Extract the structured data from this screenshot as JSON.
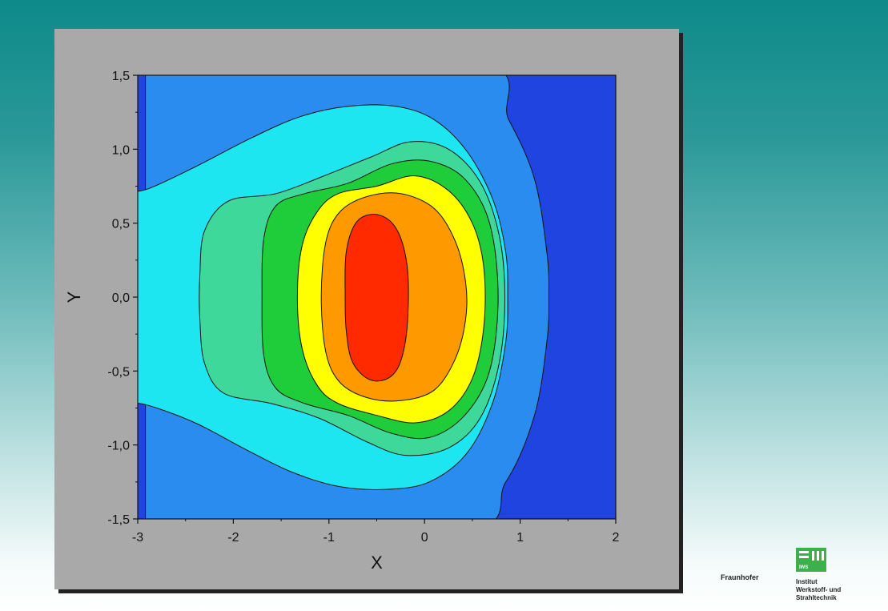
{
  "chart_data": {
    "type": "contour",
    "title": "",
    "xlabel": "X",
    "ylabel": "Y",
    "xlim": [
      -3,
      2
    ],
    "ylim": [
      -1.5,
      1.5
    ],
    "xticks": [
      "-3",
      "-2",
      "-1",
      "0",
      "1",
      "2"
    ],
    "yticks": [
      "-1,5",
      "-1,0",
      "-0,5",
      "0,0",
      "0,5",
      "1,0",
      "1,5"
    ],
    "grid": false,
    "levels": [
      {
        "name": "level-1",
        "color": "#1f44e0",
        "extent_x": [
          -3.0,
          2.0
        ]
      },
      {
        "name": "level-2",
        "color": "#2b8cf0",
        "extent_x": [
          -2.92,
          1.3
        ]
      },
      {
        "name": "level-3",
        "color": "#1ee6f0",
        "extent_x": [
          -3.0,
          0.87
        ]
      },
      {
        "name": "level-4",
        "color": "#3ed99a",
        "extent_x": [
          -2.35,
          0.84
        ]
      },
      {
        "name": "level-5",
        "color": "#1fcc3a",
        "extent_x": [
          -1.7,
          0.77
        ]
      },
      {
        "name": "level-6",
        "color": "#ffff00",
        "extent_x": [
          -1.33,
          0.62
        ]
      },
      {
        "name": "level-7",
        "color": "#ff9900",
        "extent_x": [
          -1.08,
          0.43
        ]
      },
      {
        "name": "level-8",
        "color": "#ff2a00",
        "extent_x": [
          -0.83,
          -0.17
        ]
      }
    ]
  },
  "logo": {
    "org": "Fraunhofer",
    "mark_text": "IWS",
    "institute": [
      "Institut",
      "Werkstoff- und",
      "Strahltechnik"
    ]
  }
}
